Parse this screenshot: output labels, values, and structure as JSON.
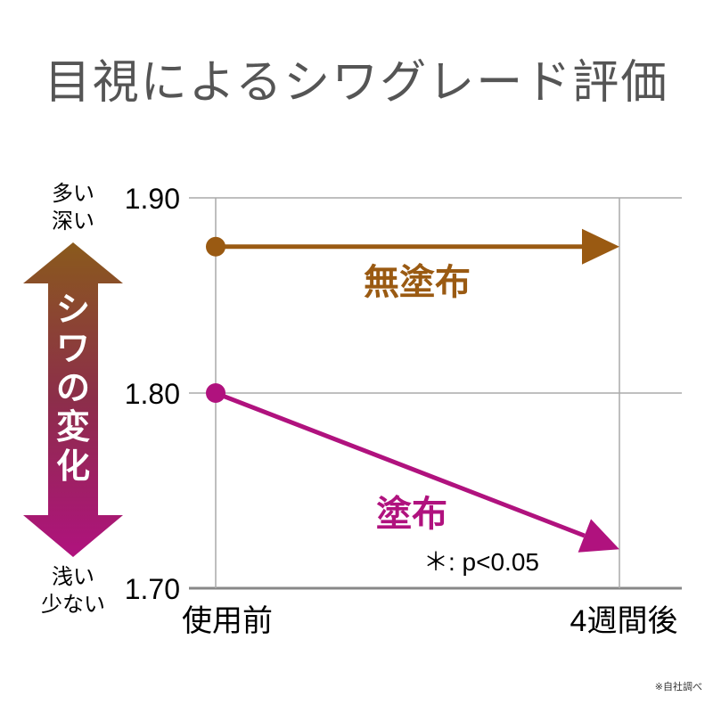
{
  "title": "目視によるシワグレード評価",
  "footnote": "※自社調べ",
  "chart_data": {
    "type": "line",
    "categories": [
      "使用前",
      "4週間後"
    ],
    "ylim": [
      1.7,
      1.9
    ],
    "yticks": [
      "1.90",
      "1.80",
      "1.70"
    ],
    "ytick_values": [
      1.9,
      1.8,
      1.7
    ],
    "series": [
      {
        "name": "無塗布",
        "values": [
          1.875,
          1.875
        ],
        "color": "#9a5a12"
      },
      {
        "name": "塗布",
        "values": [
          1.8,
          1.72
        ],
        "color": "#b0127e"
      }
    ],
    "significance": "＊: p<0.05",
    "y_indicator": {
      "label": "シワの変化",
      "top_labels": [
        "多い",
        "深い"
      ],
      "bottom_labels": [
        "浅い",
        "少ない"
      ],
      "top_color": "#8a5a1c",
      "bottom_color": "#b0127e"
    }
  }
}
